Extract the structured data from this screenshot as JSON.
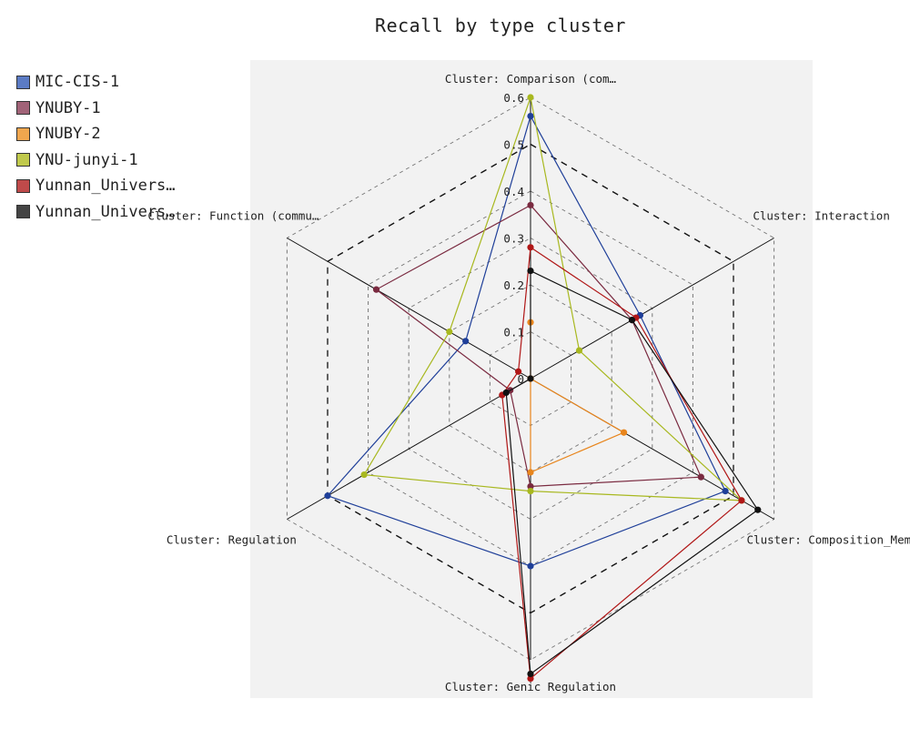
{
  "chart_data": {
    "type": "radar",
    "title": "Recall by type cluster",
    "axes": [
      "Cluster: Comparison (com…",
      "Cluster: Interaction",
      "Cluster: Composition_Mem…",
      "Cluster: Genic Regulation",
      "Cluster: Regulation",
      "Cluster: Function (commu…"
    ],
    "radial_ticks": [
      "0",
      "0.1",
      "0.2",
      "0.3",
      "0.4",
      "0.5",
      "0.6"
    ],
    "rlim": [
      0,
      0.6
    ],
    "grid": true,
    "legend_position": "top-left",
    "series": [
      {
        "name": "MIC-CIS-1",
        "color": "#1f3f99",
        "swatch": "#5b7bc4",
        "values": [
          0.56,
          0.27,
          0.48,
          0.4,
          0.5,
          0.16
        ]
      },
      {
        "name": "YNUBY-1",
        "color": "#7a2a40",
        "swatch": "#a16378",
        "values": [
          0.37,
          0.25,
          0.42,
          0.23,
          0.05,
          0.38
        ]
      },
      {
        "name": "YNUBY-2",
        "color": "#e8851c",
        "swatch": "#f0a64e",
        "values": [
          0.12,
          0.0,
          0.23,
          0.2,
          0.0,
          0.0
        ]
      },
      {
        "name": "YNU-junyi-1",
        "color": "#a8b81f",
        "swatch": "#c0c94c",
        "values": [
          0.6,
          0.12,
          0.52,
          0.24,
          0.41,
          0.2
        ]
      },
      {
        "name": "Yunnan_Univers…",
        "color": "#b01616",
        "swatch": "#bf4a4a",
        "values": [
          0.28,
          0.26,
          0.52,
          0.64,
          0.07,
          0.03
        ]
      },
      {
        "name": "Yunnan_Univers…",
        "color": "#111111",
        "swatch": "#444444",
        "values": [
          0.23,
          0.25,
          0.56,
          0.63,
          0.06,
          0.0
        ]
      }
    ]
  }
}
